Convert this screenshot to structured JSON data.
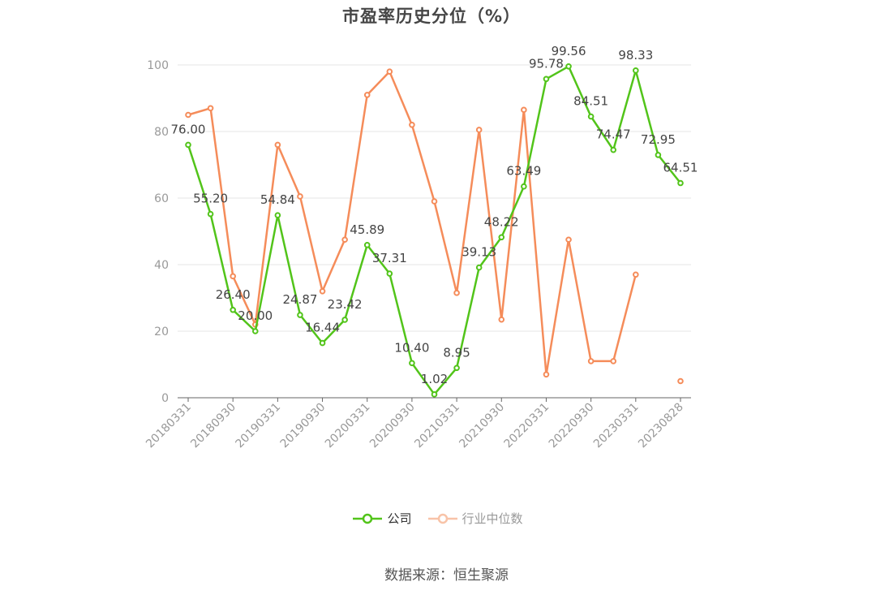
{
  "title": "市盈率历史分位（%）",
  "source": "数据来源：恒生聚源",
  "chart_data": {
    "type": "line",
    "title": "市盈率历史分位（%）",
    "xlabel": "",
    "ylabel": "",
    "ylim": [
      0,
      100
    ],
    "yticks": [
      0,
      20,
      40,
      60,
      80,
      100
    ],
    "grid": true,
    "legend_position": "bottom",
    "x": [
      "20180331",
      "20180630",
      "20180930",
      "20181231",
      "20190331",
      "20190630",
      "20190930",
      "20191231",
      "20200331",
      "20200630",
      "20200930",
      "20201231",
      "20210331",
      "20210630",
      "20210930",
      "20211231",
      "20220331",
      "20220630",
      "20220930",
      "20221231",
      "20230331",
      "20230630",
      "20230828"
    ],
    "x_tick_labels": [
      "20180331",
      "20180930",
      "20190331",
      "20190930",
      "20200331",
      "20200930",
      "20210331",
      "20210930",
      "20220331",
      "20220930",
      "20230331",
      "20230828"
    ],
    "series": [
      {
        "name": "公司",
        "color": "#52c41a",
        "show_labels": true,
        "values": [
          76.0,
          55.2,
          26.4,
          20.0,
          54.84,
          24.87,
          16.44,
          23.42,
          45.89,
          37.31,
          10.4,
          1.02,
          8.95,
          39.13,
          48.22,
          63.49,
          95.78,
          99.56,
          84.51,
          74.47,
          98.33,
          72.95,
          64.51
        ]
      },
      {
        "name": "行业中位数",
        "color": "#f58c5a",
        "show_labels": false,
        "values": [
          85,
          87,
          36.5,
          22,
          76,
          60.5,
          32,
          47.5,
          91,
          98,
          82,
          59,
          31.5,
          80.5,
          23.5,
          86.5,
          7,
          47.5,
          11,
          11,
          37,
          null,
          5
        ]
      }
    ]
  }
}
